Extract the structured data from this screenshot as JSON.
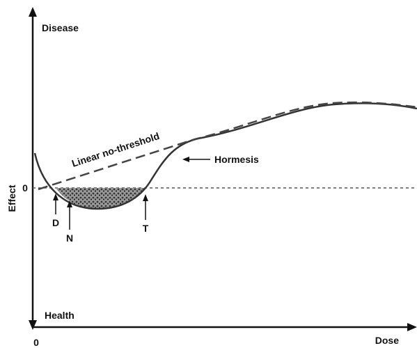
{
  "axes": {
    "y_top": "Disease",
    "y_bottom": "Health",
    "y_title": "Effect",
    "y_zero": "0",
    "x_origin": "0",
    "x_title": "Dose"
  },
  "curves": {
    "linear": "Linear no-threshold",
    "hormesis": "Hormesis"
  },
  "markers": {
    "d": "D",
    "n": "N",
    "t": "T"
  }
}
